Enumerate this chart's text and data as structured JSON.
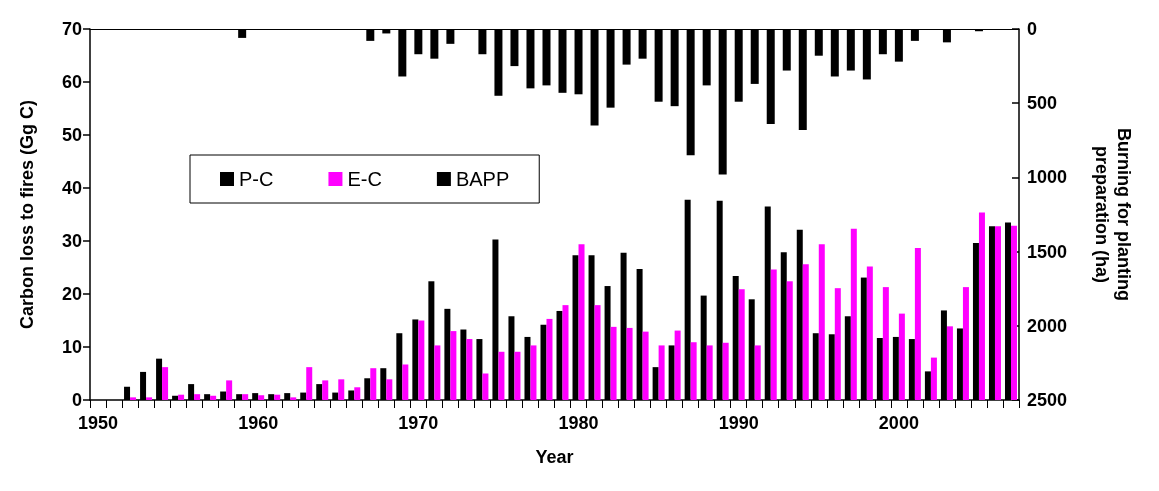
{
  "chart_data": {
    "type": "bar",
    "xlabel": "Year",
    "ylabel": "Carbon loss to fires (Gg C)",
    "y2label": "Burning for planting\npreparation (ha)",
    "categories": [
      "1950",
      null,
      null,
      null,
      null,
      null,
      null,
      null,
      null,
      null,
      "1960",
      null,
      null,
      null,
      null,
      null,
      null,
      null,
      null,
      null,
      "1970",
      null,
      null,
      null,
      null,
      null,
      null,
      null,
      null,
      null,
      "1980",
      null,
      null,
      null,
      null,
      null,
      null,
      null,
      null,
      null,
      "1990",
      null,
      null,
      null,
      null,
      null,
      null,
      null,
      null,
      null,
      "2000",
      null,
      null,
      null,
      null,
      null,
      null,
      null
    ],
    "series": [
      {
        "name": "P-C",
        "color": "#000000",
        "values": [
          null,
          null,
          2.5,
          5.3,
          7.8,
          0.8,
          3.0,
          1.1,
          1.6,
          1.1,
          1.3,
          1.1,
          1.3,
          1.4,
          3.0,
          1.4,
          1.8,
          4.1,
          6.0,
          12.6,
          15.2,
          22.4,
          17.2,
          13.3,
          11.5,
          30.3,
          15.8,
          11.9,
          14.2,
          16.8,
          27.3,
          27.3,
          21.5,
          27.8,
          24.7,
          6.2,
          10.3,
          37.8,
          19.7,
          37.6,
          23.4,
          19.0,
          36.5,
          27.9,
          32.1,
          12.6,
          12.4,
          15.8,
          23.1,
          11.7,
          11.9,
          11.5,
          5.4,
          16.9,
          13.5,
          29.6,
          32.8,
          33.5
        ]
      },
      {
        "name": "E-C",
        "color": "#ff00ff",
        "values": [
          null,
          null,
          0.5,
          0.5,
          6.2,
          1.0,
          1.1,
          0.8,
          3.7,
          1.1,
          0.9,
          1.0,
          0.5,
          6.2,
          3.7,
          3.9,
          2.4,
          6.0,
          3.9,
          6.7,
          15.0,
          10.3,
          13.0,
          11.5,
          5.0,
          9.1,
          9.1,
          10.3,
          15.3,
          17.9,
          29.4,
          17.9,
          13.8,
          13.6,
          12.9,
          10.3,
          13.1,
          10.9,
          10.3,
          10.8,
          20.9,
          10.3,
          24.6,
          22.4,
          25.6,
          29.4,
          21.1,
          32.3,
          25.2,
          21.3,
          16.3,
          28.7,
          8.0,
          13.9,
          21.3,
          35.4,
          32.8,
          32.9
        ]
      },
      {
        "name": "BAPP",
        "color": "#000000",
        "axis": "y2",
        "values": [
          null,
          null,
          null,
          null,
          null,
          null,
          null,
          null,
          null,
          60,
          null,
          null,
          null,
          null,
          null,
          null,
          null,
          80,
          30,
          320,
          170,
          200,
          100,
          null,
          170,
          450,
          250,
          400,
          380,
          430,
          440,
          650,
          530,
          240,
          200,
          490,
          520,
          850,
          380,
          980,
          490,
          370,
          640,
          280,
          680,
          180,
          320,
          280,
          340,
          170,
          220,
          80,
          null,
          90,
          null,
          15,
          null,
          null
        ]
      }
    ],
    "ylim": [
      0,
      70
    ],
    "yticks": [
      0,
      10,
      20,
      30,
      40,
      50,
      60,
      70
    ],
    "y2lim": [
      2500,
      0
    ],
    "y2ticks": [
      0,
      500,
      1000,
      1500,
      2000,
      2500
    ],
    "legend": "left",
    "grid": false
  }
}
